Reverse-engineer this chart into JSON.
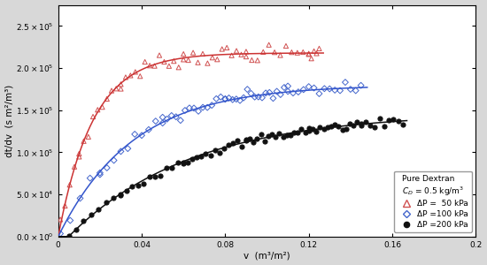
{
  "xlabel": "v  (m³/m²)",
  "ylabel": "dt/dv  (s m²/m³)",
  "xlim": [
    0,
    0.2
  ],
  "ylim": [
    0,
    275000.0
  ],
  "yticks": [
    0.0,
    50000.0,
    100000.0,
    150000.0,
    200000.0,
    250000.0
  ],
  "xticks": [
    0,
    0.04,
    0.08,
    0.12,
    0.16,
    0.2
  ],
  "ytick_labels": [
    "0.0×10⁰",
    "5.0×10⁴",
    "1.0×10⁵",
    "1.5×10⁵",
    "2.0×10⁵",
    "2.5×10⁵"
  ],
  "xtick_labels": [
    "0",
    "0.04",
    "0.08",
    "0.12",
    "0.16",
    "0.2"
  ],
  "legend_title": "Pure Dextran\n$C_D$ = 0.5 kg/m$^3$",
  "legend_entries": [
    "ΔP =  50 kPa",
    "ΔP =100 kPa",
    "ΔP =200 kPa"
  ],
  "colors": [
    "#d05050",
    "#4466cc",
    "#111111"
  ],
  "line_colors": [
    "#cc3333",
    "#3355cc",
    "#111111"
  ],
  "bg_color": "#d8d8d8",
  "panel_color": "#ffffff",
  "p50": 218000.0,
  "k50": 60,
  "v0_50": 0.0,
  "p100": 180000.0,
  "k100": 28,
  "v0_100": 0.0,
  "p200": 147000.0,
  "k200": 17,
  "v0_200": 0.005
}
